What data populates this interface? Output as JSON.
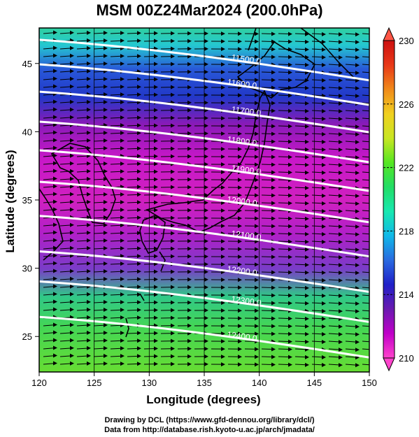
{
  "title": "MSM 00Z24Mar2024 (200.0hPa)",
  "xaxis": {
    "label": "Longitude (degrees)",
    "min": 120,
    "max": 150,
    "ticks": [
      "120",
      "125",
      "130",
      "135",
      "140",
      "145",
      "150"
    ]
  },
  "yaxis": {
    "label": "Latitude  (degrees)",
    "min": 22.4,
    "max": 47.6,
    "ticks": [
      "25",
      "30",
      "35",
      "40",
      "45"
    ]
  },
  "colorbar": {
    "min": 210,
    "max": 230,
    "ticks": [
      "210",
      "214",
      "218",
      "222",
      "226",
      "230"
    ],
    "colors": [
      "#ff44cc",
      "#c000c8",
      "#6a1ab0",
      "#2020c8",
      "#2a6ae0",
      "#10b8e8",
      "#18e8b0",
      "#22dd66",
      "#55e622",
      "#c8e622",
      "#f0d020",
      "#f08a1a",
      "#e83818",
      "#cc1010"
    ]
  },
  "contours": [
    {
      "label": "11500.0",
      "lat": 45.3
    },
    {
      "label": "11600.0",
      "lat": 43.5
    },
    {
      "label": "11700.0",
      "lat": 41.5
    },
    {
      "label": "11800.0",
      "lat": 39.3
    },
    {
      "label": "11900.0",
      "lat": 37.2
    },
    {
      "label": "12000.0",
      "lat": 34.9
    },
    {
      "label": "12100.0",
      "lat": 32.4
    },
    {
      "label": "12200.0",
      "lat": 29.8
    },
    {
      "label": "12300.0",
      "lat": 27.6
    },
    {
      "label": "12400.0",
      "lat": 25.0
    }
  ],
  "credits": [
    "Drawing by DCL (https://www.gfd-dennou.org/library/dcl/)",
    "Data from http://database.rish.kyoto-u.ac.jp/arch/jmadata/"
  ]
}
